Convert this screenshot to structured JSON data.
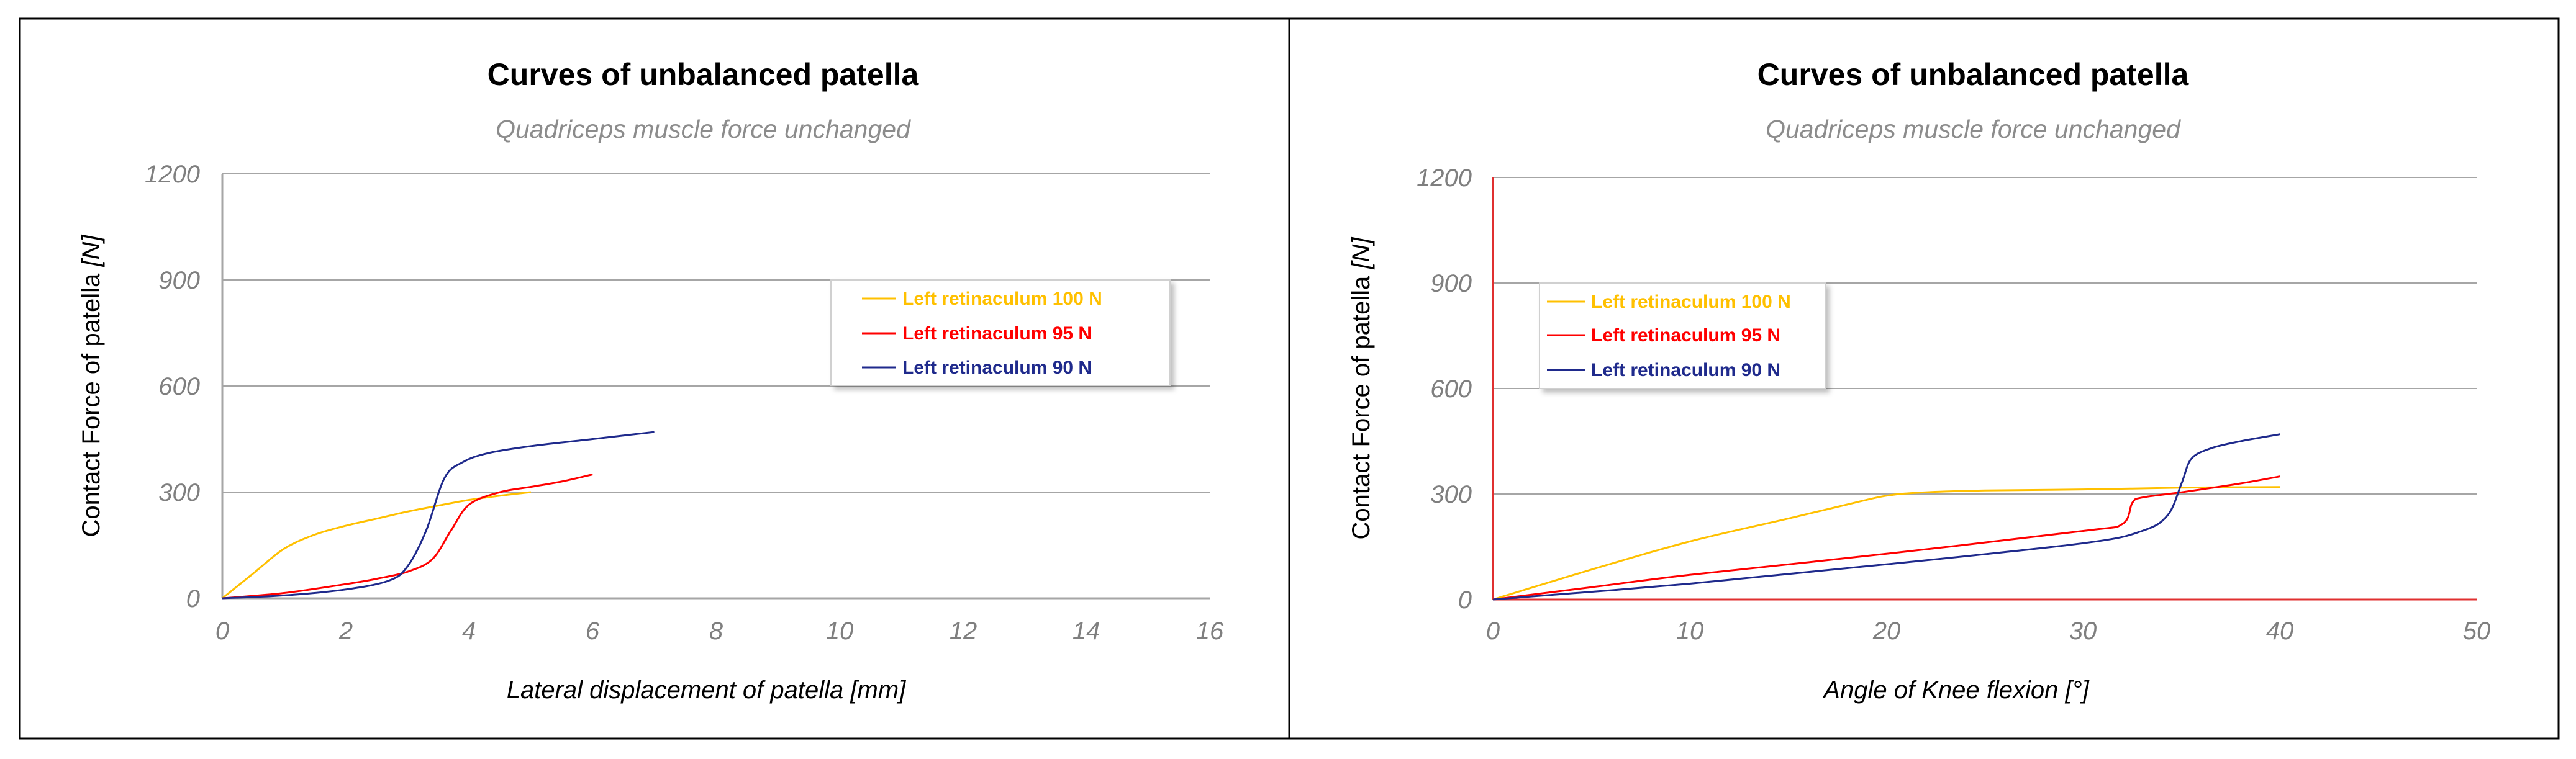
{
  "colors": {
    "s100": "#ffc000",
    "s95": "#ff0000",
    "s90": "#1f2a8c",
    "grid": "#a6a6a6",
    "axis_red": "#e03030"
  },
  "chart_data": [
    {
      "type": "line",
      "title": "Curves of unbalanced patella",
      "subtitle": "Quadriceps muscle force unchanged",
      "xlabel_text": "Lateral displacement of patella  [mm]",
      "ylabel_main": "Contact Force of patella ",
      "ylabel_unit": "[N]",
      "xlim": [
        0,
        16
      ],
      "ylim": [
        0,
        1200
      ],
      "xticks": [
        "0",
        "2",
        "4",
        "6",
        "8",
        "10",
        "12",
        "14",
        "16"
      ],
      "yticks": [
        "0",
        "300",
        "600",
        "900",
        "1200"
      ],
      "grid": true,
      "legend_position": "right",
      "series": [
        {
          "name": "Left retinaculum 100 N",
          "color": "#ffc000",
          "x": [
            0,
            0.5,
            1,
            1.5,
            2,
            2.5,
            3,
            3.5,
            4,
            4.5,
            5
          ],
          "y": [
            0,
            70,
            140,
            180,
            205,
            225,
            245,
            262,
            278,
            290,
            300
          ]
        },
        {
          "name": "Left retinaculum 95 N",
          "color": "#ff0000",
          "x": [
            0,
            1,
            2,
            2.5,
            3,
            3.4,
            3.7,
            4,
            4.5,
            5,
            5.5,
            6
          ],
          "y": [
            0,
            15,
            40,
            55,
            75,
            110,
            190,
            265,
            300,
            315,
            330,
            350
          ]
        },
        {
          "name": "Left retinaculum 90 N",
          "color": "#1f2a8c",
          "x": [
            0,
            1,
            2,
            2.7,
            3,
            3.3,
            3.6,
            3.9,
            4.3,
            5,
            6,
            7
          ],
          "y": [
            0,
            8,
            25,
            50,
            90,
            190,
            340,
            385,
            410,
            430,
            450,
            470
          ]
        }
      ]
    },
    {
      "type": "line",
      "title": "Curves of unbalanced patella",
      "subtitle": "Quadriceps muscle force unchanged",
      "xlabel_text": "Angle of Knee flexion [°]",
      "ylabel_main": "Contact Force of patella ",
      "ylabel_unit": "[N]",
      "xlim": [
        0,
        50
      ],
      "ylim": [
        0,
        1200
      ],
      "xticks": [
        "0",
        "10",
        "20",
        "30",
        "40",
        "50"
      ],
      "yticks": [
        "0",
        "300",
        "600",
        "900",
        "1200"
      ],
      "grid": true,
      "legend_position": "top-left",
      "series": [
        {
          "name": "Left retinaculum 100 N",
          "color": "#ffc000",
          "x": [
            0,
            5,
            10,
            15,
            18,
            20,
            22,
            25,
            30,
            35,
            40
          ],
          "y": [
            0,
            85,
            165,
            230,
            270,
            295,
            305,
            310,
            313,
            318,
            320
          ]
        },
        {
          "name": "Left retinaculum 95 N",
          "color": "#ff0000",
          "x": [
            0,
            5,
            10,
            20,
            30,
            32,
            32.5,
            33,
            35,
            38,
            40
          ],
          "y": [
            0,
            35,
            70,
            130,
            195,
            215,
            275,
            290,
            305,
            330,
            350
          ]
        },
        {
          "name": "Left retinaculum 90 N",
          "color": "#1f2a8c",
          "x": [
            0,
            10,
            20,
            30,
            33,
            34.3,
            35,
            35.5,
            36.5,
            38,
            40
          ],
          "y": [
            0,
            45,
            100,
            160,
            195,
            240,
            330,
            400,
            430,
            450,
            470
          ]
        }
      ]
    }
  ]
}
